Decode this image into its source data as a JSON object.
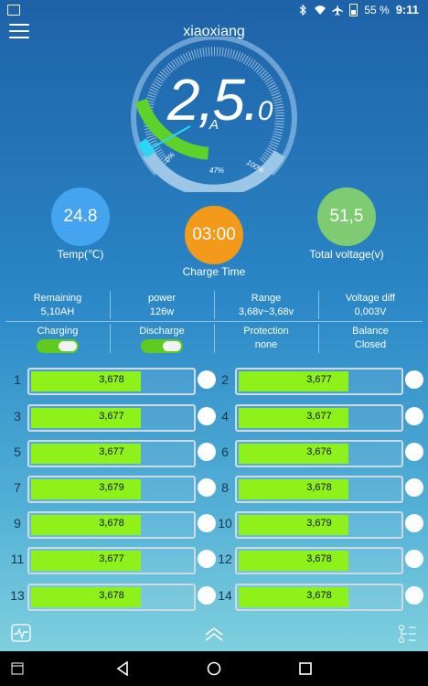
{
  "status_bar": {
    "battery_percent": "55 %",
    "time": "9:11",
    "icons": [
      "picture-icon",
      "bluetooth-icon",
      "wifi-icon",
      "airplane-icon",
      "battery-icon"
    ]
  },
  "header": {
    "title": "xiaoxiang",
    "menu_icon": "menu-icon"
  },
  "gauge": {
    "value_main": "2,5.",
    "value_decimal": "0",
    "unit": "A",
    "tick_labels": [
      "0%",
      "47%",
      "100%"
    ],
    "charge_fraction": 0.47
  },
  "circles": {
    "temp": {
      "value": "24.8",
      "label": "Temp(℃)",
      "color": "#45a4ef"
    },
    "time": {
      "value": "03:00",
      "label": "Charge Time",
      "color": "#f39a1a"
    },
    "voltage": {
      "value": "51,5",
      "label": "Total voltage(v)",
      "color": "#7fcb72"
    }
  },
  "stats": {
    "remaining": {
      "label": "Remaining",
      "value": "5,10AH"
    },
    "power": {
      "label": "power",
      "value": "126w"
    },
    "range": {
      "label": "Range",
      "value": "3,68v~3,68v"
    },
    "voltage_diff": {
      "label": "Voltage diff",
      "value": "0,003V"
    },
    "charging": {
      "label": "Charging",
      "on": true
    },
    "discharge": {
      "label": "Discharge",
      "on": true
    },
    "protection": {
      "label": "Protection",
      "value": "none"
    },
    "balance": {
      "label": "Balance",
      "value": "Closed"
    }
  },
  "cells": [
    {
      "num": "1",
      "value": "3,678"
    },
    {
      "num": "2",
      "value": "3,677"
    },
    {
      "num": "3",
      "value": "3,677"
    },
    {
      "num": "4",
      "value": "3,677"
    },
    {
      "num": "5",
      "value": "3,677"
    },
    {
      "num": "6",
      "value": "3,676"
    },
    {
      "num": "7",
      "value": "3,679"
    },
    {
      "num": "8",
      "value": "3,678"
    },
    {
      "num": "9",
      "value": "3,678"
    },
    {
      "num": "10",
      "value": "3,679"
    },
    {
      "num": "11",
      "value": "3,677"
    },
    {
      "num": "12",
      "value": "3,678"
    },
    {
      "num": "13",
      "value": "3,678"
    },
    {
      "num": "14",
      "value": "3,678"
    }
  ],
  "cell_fill_fraction": 0.68,
  "bottom_bar": {
    "icons": [
      "waveform-icon",
      "chevron-up-icon",
      "settings-list-icon"
    ]
  },
  "nav_bar": {
    "icons": [
      "recents-icon",
      "back-icon",
      "home-icon",
      "overview-icon"
    ]
  },
  "colors": {
    "accent_green": "#8ff11a",
    "gauge_cyan": "#2fd5f5",
    "background_top": "#1e62a8",
    "background_bottom": "#7fd0de"
  }
}
